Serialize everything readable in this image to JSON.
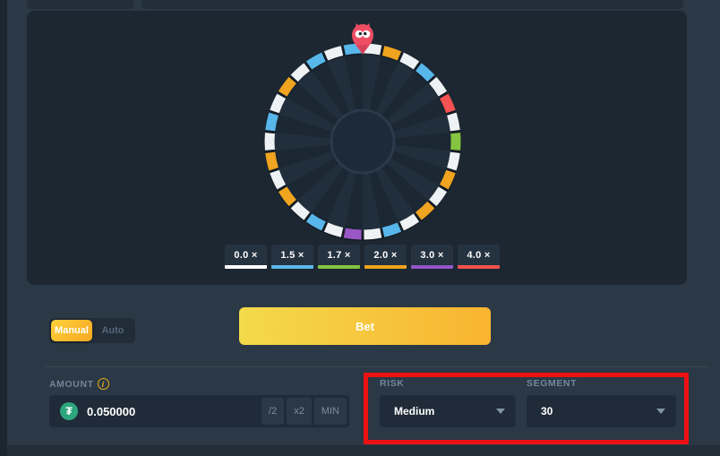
{
  "wheel": {
    "pointer": "owl-mascot",
    "inner_bg": "#1b2733",
    "wedge_color": "#212e3c",
    "hub_fill": "#1d2a37",
    "hub_stroke": "#2a3a4a",
    "palette": {
      "white": "#eef2f4",
      "blue": "#58b7ea",
      "green": "#85c441",
      "orange": "#f0a41f",
      "purple": "#9a57c6",
      "red": "#f35352"
    },
    "segment_colors": [
      "white",
      "orange",
      "white",
      "blue",
      "white",
      "red",
      "white",
      "green",
      "white",
      "orange",
      "white",
      "orange",
      "white",
      "blue",
      "white",
      "purple",
      "white",
      "blue",
      "white",
      "orange",
      "white",
      "orange",
      "white",
      "blue",
      "white",
      "orange",
      "white",
      "blue",
      "white",
      "blue"
    ]
  },
  "multipliers": [
    {
      "label": "0.0 ×",
      "color": "#ffffff"
    },
    {
      "label": "1.5 ×",
      "color": "#5cb8e8"
    },
    {
      "label": "1.7 ×",
      "color": "#84c43f"
    },
    {
      "label": "2.0 ×",
      "color": "#f0a31d"
    },
    {
      "label": "3.0 ×",
      "color": "#9455c8"
    },
    {
      "label": "4.0 ×",
      "color": "#f4514d"
    }
  ],
  "controls": {
    "mode_toggle": {
      "manual_label": "Manual",
      "auto_label": "Auto",
      "selected": "Manual"
    },
    "bet_label": "Bet",
    "amount": {
      "label": "AMOUNT",
      "value": "0.050000",
      "currency_icon": "tether-coin",
      "half_label": "/2",
      "double_label": "x2",
      "min_label": "MIN"
    },
    "risk": {
      "label": "RISK",
      "value": "Medium"
    },
    "segment": {
      "label": "SEGMENT",
      "value": "30"
    }
  },
  "annotation": {
    "type": "highlight-box",
    "color": "#ee1111"
  }
}
